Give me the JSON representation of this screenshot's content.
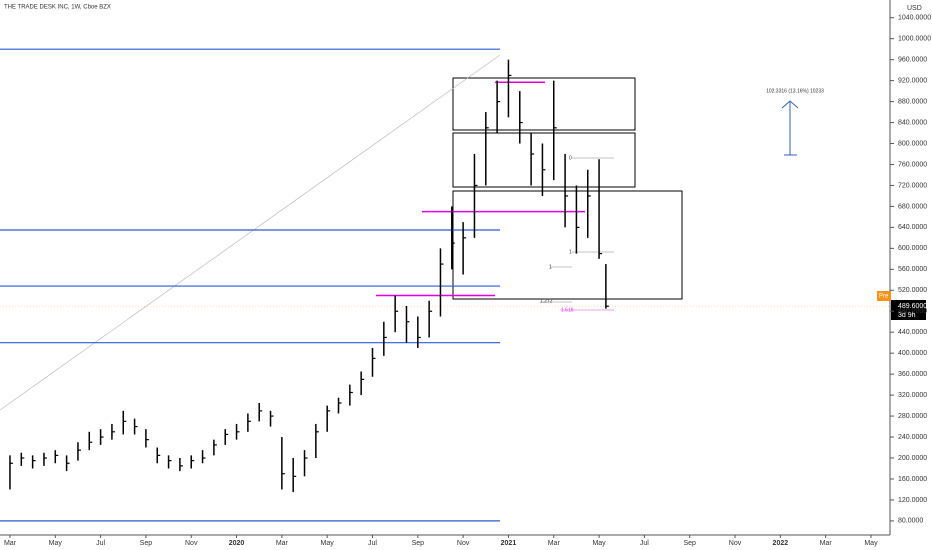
{
  "chart_data": {
    "type": "ohlc",
    "title": "THE TRADE DESK INC, 1W, Cboe BZX",
    "currency": "USD",
    "x": [
      0,
      0.5,
      1,
      1.5,
      2,
      2.5,
      3,
      3.5,
      4,
      4.5,
      5,
      5.5,
      6,
      6.5,
      7,
      7.5,
      8,
      8.5,
      9,
      9.5,
      10,
      10.5,
      11,
      11.5,
      12,
      12.5,
      13,
      13.5,
      14,
      14.5,
      15,
      15.5,
      16,
      16.5,
      17,
      17.5,
      18,
      18.5,
      19,
      19.5,
      20,
      20.5,
      21,
      21.5,
      22,
      22.5,
      23,
      23.5,
      24,
      24.5,
      25,
      25.5,
      26,
      26.3
    ],
    "high": [
      205,
      210,
      205,
      210,
      215,
      205,
      230,
      250,
      255,
      265,
      290,
      275,
      255,
      220,
      205,
      200,
      205,
      215,
      235,
      255,
      265,
      285,
      305,
      290,
      240,
      200,
      215,
      265,
      300,
      315,
      340,
      365,
      410,
      460,
      510,
      490,
      470,
      500,
      600,
      680,
      650,
      780,
      860,
      920,
      960,
      900,
      820,
      800,
      920,
      780,
      720,
      750,
      770,
      570
    ],
    "low": [
      140,
      185,
      180,
      185,
      190,
      175,
      195,
      215,
      225,
      235,
      245,
      245,
      220,
      190,
      180,
      175,
      180,
      190,
      205,
      225,
      235,
      250,
      270,
      260,
      140,
      135,
      165,
      200,
      250,
      285,
      300,
      320,
      355,
      395,
      440,
      420,
      410,
      430,
      470,
      560,
      550,
      620,
      720,
      820,
      850,
      800,
      720,
      700,
      730,
      640,
      590,
      620,
      580,
      485
    ],
    "close": [
      190,
      200,
      195,
      200,
      205,
      190,
      215,
      230,
      240,
      250,
      270,
      260,
      235,
      205,
      195,
      185,
      195,
      200,
      225,
      245,
      250,
      270,
      290,
      280,
      170,
      165,
      200,
      250,
      290,
      305,
      325,
      350,
      390,
      430,
      480,
      460,
      430,
      480,
      570,
      610,
      620,
      720,
      830,
      880,
      930,
      840,
      780,
      750,
      830,
      700,
      640,
      700,
      590,
      489.6
    ],
    "xlim": [
      -0.44,
      38.84
    ],
    "xticks": [
      {
        "value": 0,
        "label": "Mar"
      },
      {
        "value": 2,
        "label": "May"
      },
      {
        "value": 4,
        "label": "Jul"
      },
      {
        "value": 6,
        "label": "Sep"
      },
      {
        "value": 8,
        "label": "Nov"
      },
      {
        "value": 10,
        "label": "2020"
      },
      {
        "value": 12,
        "label": "Mar"
      },
      {
        "value": 14,
        "label": "May"
      },
      {
        "value": 16,
        "label": "Jul"
      },
      {
        "value": 18,
        "label": "Sep"
      },
      {
        "value": 20,
        "label": "Nov"
      },
      {
        "value": 22,
        "label": "2021"
      },
      {
        "value": 24,
        "label": "Mar"
      },
      {
        "value": 26,
        "label": "May"
      },
      {
        "value": 28,
        "label": "Jul"
      },
      {
        "value": 30,
        "label": "Sep"
      },
      {
        "value": 32,
        "label": "Nov"
      },
      {
        "value": 34,
        "label": "2022"
      },
      {
        "value": 36,
        "label": "Mar"
      },
      {
        "value": 38,
        "label": "May"
      }
    ],
    "ylim": [
      76,
      1070
    ],
    "yticks": [
      {
        "value": 80,
        "label": "80.0000"
      },
      {
        "value": 120,
        "label": "120.0000"
      },
      {
        "value": 160,
        "label": "160.0000"
      },
      {
        "value": 200,
        "label": "200.0000"
      },
      {
        "value": 240,
        "label": "240.0000"
      },
      {
        "value": 280,
        "label": "280.0000"
      },
      {
        "value": 320,
        "label": "320.0000"
      },
      {
        "value": 360,
        "label": "360.0000"
      },
      {
        "value": 400,
        "label": "400.0000"
      },
      {
        "value": 440,
        "label": "440.0000"
      },
      {
        "value": 480,
        "label": "480.0000"
      },
      {
        "value": 520,
        "label": "520.0000"
      },
      {
        "value": 560,
        "label": "560.0000"
      },
      {
        "value": 600,
        "label": "600.0000"
      },
      {
        "value": 640,
        "label": "640.0000"
      },
      {
        "value": 680,
        "label": "680.0000"
      },
      {
        "value": 720,
        "label": "720.0000"
      },
      {
        "value": 760,
        "label": "760.0000"
      },
      {
        "value": 800,
        "label": "800.0000"
      },
      {
        "value": 840,
        "label": "840.0000"
      },
      {
        "value": 880,
        "label": "880.0000"
      },
      {
        "value": 920,
        "label": "920.0000"
      },
      {
        "value": 960,
        "label": "960.0000"
      },
      {
        "value": 1000,
        "label": "1000.0000"
      },
      {
        "value": 1040,
        "label": "1040.0000"
      }
    ],
    "horizontal_lines": [
      980,
      635,
      528,
      420,
      80
    ],
    "magenta_lines": [
      917,
      670,
      510
    ],
    "last_price": {
      "value": 489.6,
      "label": "489.6000",
      "tag": "Pre",
      "countdown": "3d 9h"
    },
    "annotations": {
      "measure": "102.3316 (13.16%) 10233",
      "fib0": "0",
      "fib1": "1",
      "fib1272": "1.272",
      "fib1618": "1.618"
    }
  }
}
